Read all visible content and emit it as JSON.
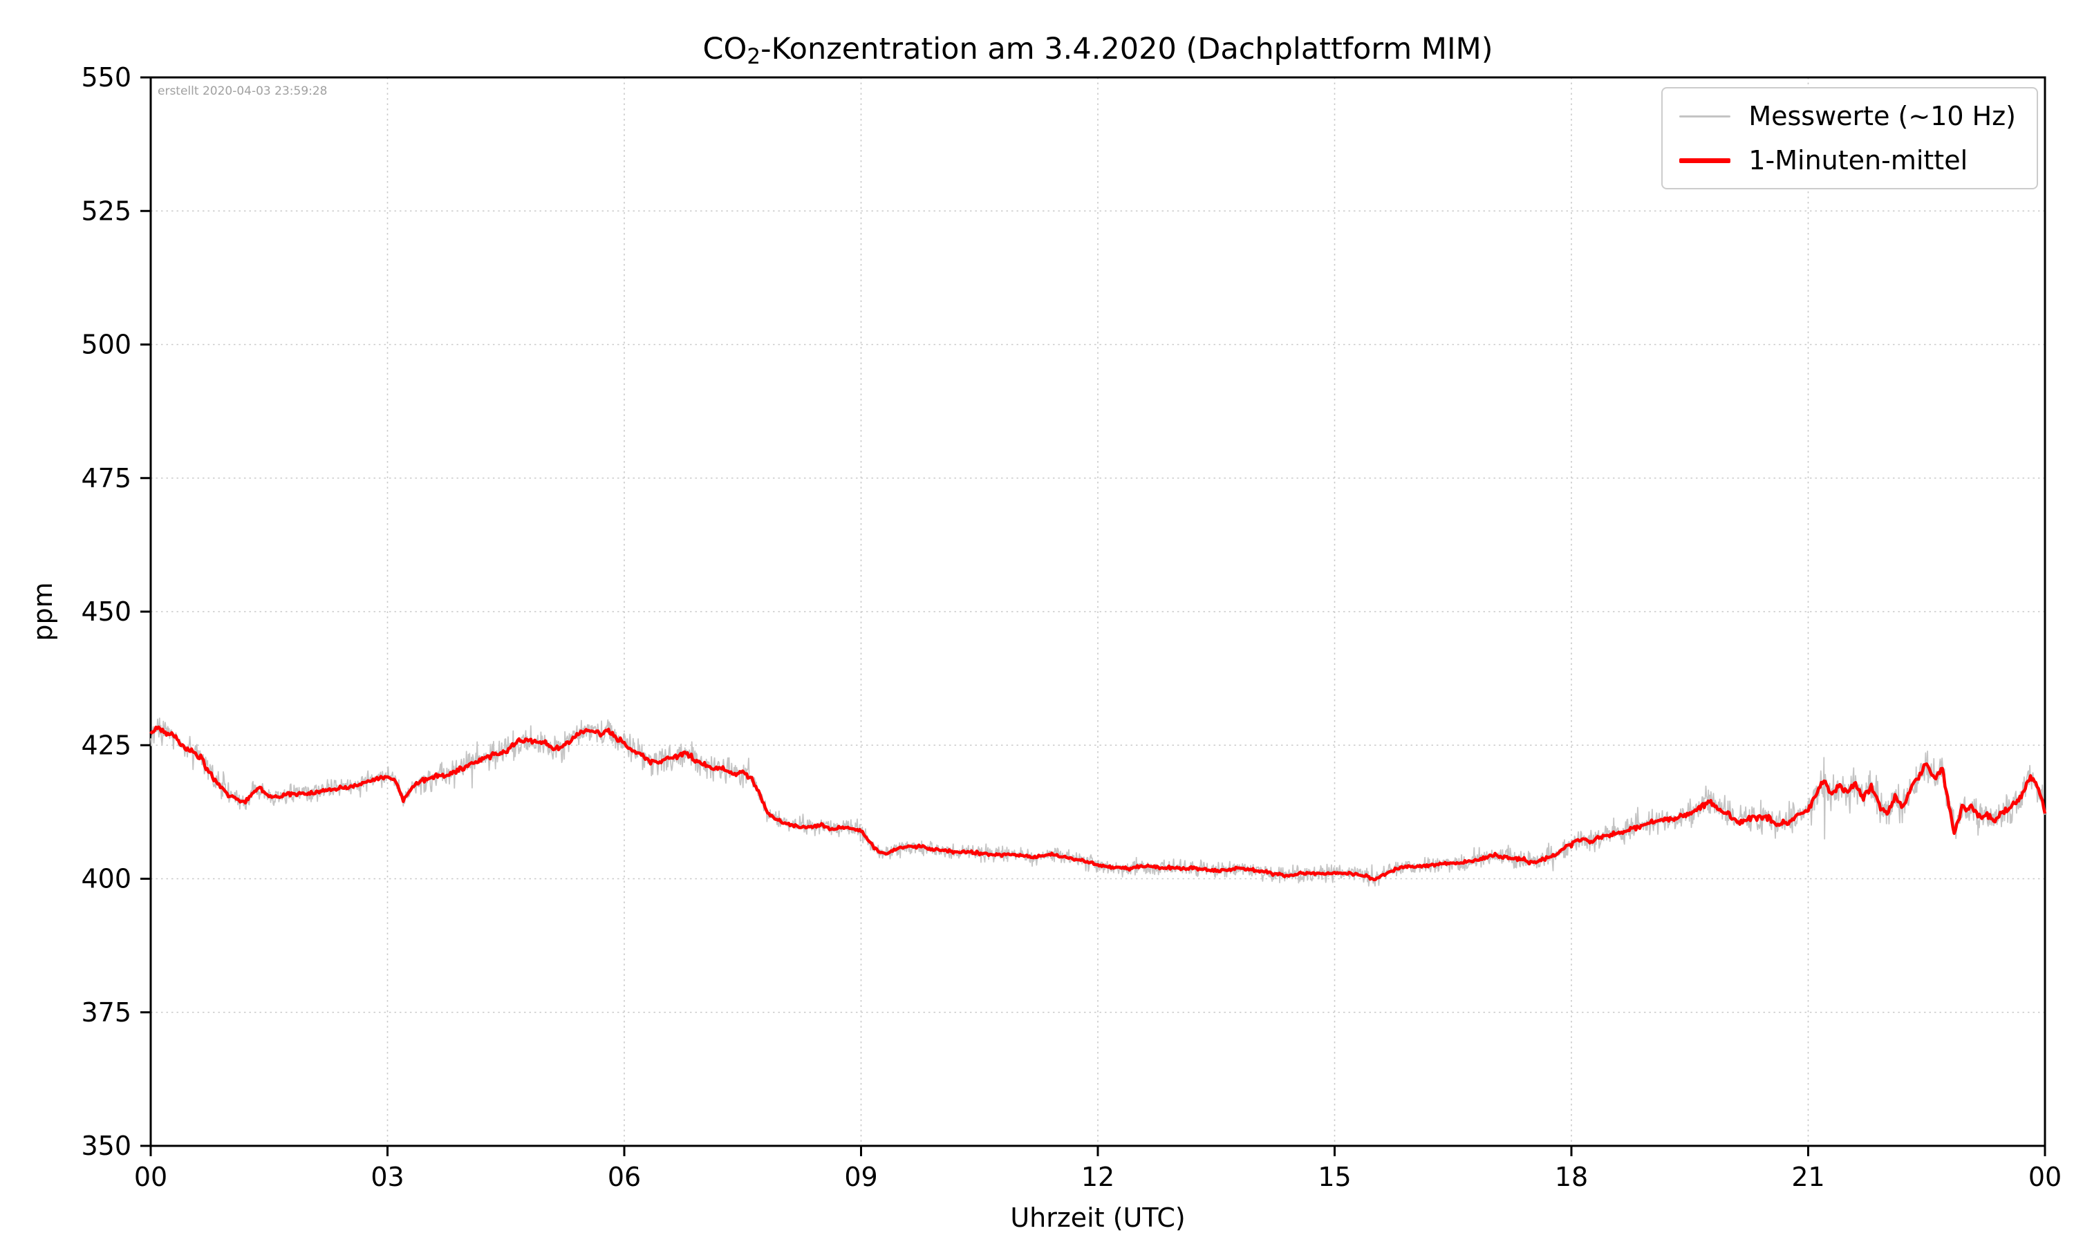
{
  "annotation": {
    "created": "erstellt 2020-04-03 23:59:28"
  },
  "title": {
    "prefix": "CO",
    "subscript": "2",
    "suffix": "-Konzentration am 3.4.2020 (Dachplattform MIM)"
  },
  "axis_labels": {
    "x": "Uhrzeit (UTC)",
    "y": "ppm"
  },
  "legend": {
    "entries": [
      {
        "label": "Messwerte (~10 Hz)",
        "color": "#c4c4c4"
      },
      {
        "label": "1-Minuten-mittel",
        "color": "#ff0000"
      }
    ]
  },
  "chart_data": {
    "type": "line",
    "title": "CO2-Konzentration am 3.4.2020 (Dachplattform MIM)",
    "xlabel": "Uhrzeit (UTC)",
    "ylabel": "ppm",
    "xlim": [
      0,
      24
    ],
    "ylim": [
      350,
      550
    ],
    "xticks": {
      "values": [
        0,
        3,
        6,
        9,
        12,
        15,
        18,
        21,
        24
      ],
      "labels": [
        "00",
        "03",
        "06",
        "09",
        "12",
        "15",
        "18",
        "21",
        "00"
      ]
    },
    "yticks": [
      350,
      375,
      400,
      425,
      450,
      475,
      500,
      525,
      550
    ],
    "grid": true,
    "grid_style": "dotted",
    "legend_position": "upper right",
    "annotation": "erstellt 2020-04-03 23:59:28",
    "series": [
      {
        "name": "Messwerte (~10 Hz)",
        "color": "#c4c4c4",
        "linewidth": 1.8,
        "derived_from": "1-Minuten-mittel",
        "noise_segments": [
          {
            "x0": 0.0,
            "x1": 1.0,
            "amp": 3.0
          },
          {
            "x0": 1.0,
            "x1": 3.4,
            "amp": 1.8
          },
          {
            "x0": 3.4,
            "x1": 7.6,
            "amp": 2.8
          },
          {
            "x0": 7.6,
            "x1": 9.0,
            "amp": 2.0
          },
          {
            "x0": 9.0,
            "x1": 17.0,
            "amp": 1.6
          },
          {
            "x0": 17.0,
            "x1": 19.0,
            "amp": 2.2
          },
          {
            "x0": 19.0,
            "x1": 21.0,
            "amp": 2.8
          },
          {
            "x0": 21.0,
            "x1": 24.0,
            "amp": 3.6
          }
        ],
        "spike_probability": 0.008,
        "spike_scale": 1.8
      },
      {
        "name": "1-Minuten-mittel",
        "color": "#ff0000",
        "linewidth": 4.5,
        "points": [
          [
            0,
            427
          ],
          [
            0.08,
            428.2
          ],
          [
            0.17,
            427.6
          ],
          [
            0.3,
            426.5
          ],
          [
            0.42,
            424.6
          ],
          [
            0.55,
            423.8
          ],
          [
            0.65,
            422.2
          ],
          [
            0.75,
            419.8
          ],
          [
            0.88,
            417.3
          ],
          [
            1,
            415.6
          ],
          [
            1.1,
            414.9
          ],
          [
            1.2,
            414.4
          ],
          [
            1.3,
            416.2
          ],
          [
            1.38,
            417
          ],
          [
            1.48,
            415.4
          ],
          [
            1.6,
            415.4
          ],
          [
            1.8,
            415.9
          ],
          [
            2,
            416
          ],
          [
            2.2,
            416.4
          ],
          [
            2.4,
            417
          ],
          [
            2.6,
            417.4
          ],
          [
            2.8,
            418.4
          ],
          [
            3,
            419
          ],
          [
            3.1,
            418.6
          ],
          [
            3.2,
            414.6
          ],
          [
            3.32,
            417.4
          ],
          [
            3.45,
            418.4
          ],
          [
            3.6,
            419.4
          ],
          [
            3.75,
            419.4
          ],
          [
            3.9,
            420.4
          ],
          [
            4,
            421
          ],
          [
            4.2,
            422.4
          ],
          [
            4.4,
            423.4
          ],
          [
            4.5,
            424
          ],
          [
            4.6,
            425.4
          ],
          [
            4.75,
            426
          ],
          [
            4.9,
            425.5
          ],
          [
            5,
            425.6
          ],
          [
            5.1,
            424.1
          ],
          [
            5.2,
            424.6
          ],
          [
            5.35,
            426.2
          ],
          [
            5.45,
            427.4
          ],
          [
            5.6,
            428
          ],
          [
            5.7,
            427
          ],
          [
            5.8,
            427.6
          ],
          [
            5.9,
            426.4
          ],
          [
            6,
            425.4
          ],
          [
            6.1,
            424
          ],
          [
            6.2,
            423.4
          ],
          [
            6.35,
            422
          ],
          [
            6.5,
            422
          ],
          [
            6.65,
            423
          ],
          [
            6.78,
            423.6
          ],
          [
            6.9,
            422.2
          ],
          [
            7,
            421.5
          ],
          [
            7.1,
            420.6
          ],
          [
            7.25,
            420.6
          ],
          [
            7.4,
            419.6
          ],
          [
            7.5,
            420
          ],
          [
            7.6,
            419
          ],
          [
            7.7,
            416.4
          ],
          [
            7.8,
            412.8
          ],
          [
            7.9,
            411.4
          ],
          [
            8,
            410.6
          ],
          [
            8.15,
            410
          ],
          [
            8.3,
            409.6
          ],
          [
            8.5,
            410
          ],
          [
            8.65,
            409.4
          ],
          [
            8.8,
            409.6
          ],
          [
            9,
            409
          ],
          [
            9.1,
            407
          ],
          [
            9.2,
            405.4
          ],
          [
            9.3,
            404.6
          ],
          [
            9.45,
            405.6
          ],
          [
            9.6,
            406
          ],
          [
            9.75,
            406
          ],
          [
            9.9,
            405.6
          ],
          [
            10,
            405.4
          ],
          [
            10.2,
            405
          ],
          [
            10.4,
            405
          ],
          [
            10.6,
            404.6
          ],
          [
            10.8,
            404.6
          ],
          [
            11,
            404.4
          ],
          [
            11.2,
            404
          ],
          [
            11.4,
            404.6
          ],
          [
            11.6,
            404
          ],
          [
            11.8,
            403.4
          ],
          [
            12,
            402.6
          ],
          [
            12.2,
            402
          ],
          [
            12.4,
            402
          ],
          [
            12.6,
            402.4
          ],
          [
            12.8,
            402
          ],
          [
            13,
            402
          ],
          [
            13.2,
            402
          ],
          [
            13.4,
            401.6
          ],
          [
            13.6,
            401.6
          ],
          [
            13.8,
            402
          ],
          [
            14,
            401.6
          ],
          [
            14.2,
            401
          ],
          [
            14.4,
            400.6
          ],
          [
            14.6,
            401
          ],
          [
            14.8,
            401
          ],
          [
            15,
            401
          ],
          [
            15.2,
            401
          ],
          [
            15.4,
            400.5
          ],
          [
            15.5,
            399.8
          ],
          [
            15.65,
            401
          ],
          [
            15.8,
            402
          ],
          [
            16,
            402.4
          ],
          [
            16.2,
            402.4
          ],
          [
            16.4,
            403
          ],
          [
            16.6,
            403
          ],
          [
            16.8,
            403.4
          ],
          [
            17,
            404.4
          ],
          [
            17.2,
            404
          ],
          [
            17.4,
            403.6
          ],
          [
            17.5,
            402.9
          ],
          [
            17.6,
            403.5
          ],
          [
            17.8,
            404.5
          ],
          [
            18,
            406.4
          ],
          [
            18.1,
            407.4
          ],
          [
            18.25,
            407
          ],
          [
            18.4,
            408
          ],
          [
            18.6,
            408.5
          ],
          [
            18.8,
            409.5
          ],
          [
            19,
            410.5
          ],
          [
            19.2,
            411
          ],
          [
            19.4,
            411.6
          ],
          [
            19.6,
            413
          ],
          [
            19.75,
            414.5
          ],
          [
            19.9,
            412.6
          ],
          [
            20,
            412
          ],
          [
            20.1,
            410.6
          ],
          [
            20.3,
            411.5
          ],
          [
            20.5,
            411.5
          ],
          [
            20.6,
            410
          ],
          [
            20.75,
            410.6
          ],
          [
            20.9,
            412
          ],
          [
            21,
            413
          ],
          [
            21.1,
            416
          ],
          [
            21.2,
            418.4
          ],
          [
            21.3,
            415.6
          ],
          [
            21.4,
            417.4
          ],
          [
            21.5,
            416
          ],
          [
            21.6,
            418
          ],
          [
            21.7,
            415
          ],
          [
            21.8,
            417.4
          ],
          [
            21.9,
            413.6
          ],
          [
            22,
            412
          ],
          [
            22.1,
            415.4
          ],
          [
            22.2,
            413.6
          ],
          [
            22.3,
            417
          ],
          [
            22.4,
            419.4
          ],
          [
            22.5,
            421.4
          ],
          [
            22.6,
            419
          ],
          [
            22.7,
            420.5
          ],
          [
            22.78,
            414
          ],
          [
            22.85,
            408.6
          ],
          [
            22.95,
            413.4
          ],
          [
            23.05,
            413.4
          ],
          [
            23.15,
            411.6
          ],
          [
            23.25,
            412
          ],
          [
            23.35,
            411
          ],
          [
            23.45,
            412.4
          ],
          [
            23.55,
            413.4
          ],
          [
            23.65,
            414.4
          ],
          [
            23.75,
            417
          ],
          [
            23.82,
            418.8
          ],
          [
            23.88,
            417.8
          ],
          [
            23.95,
            415.6
          ],
          [
            24,
            412.6
          ]
        ]
      }
    ]
  }
}
